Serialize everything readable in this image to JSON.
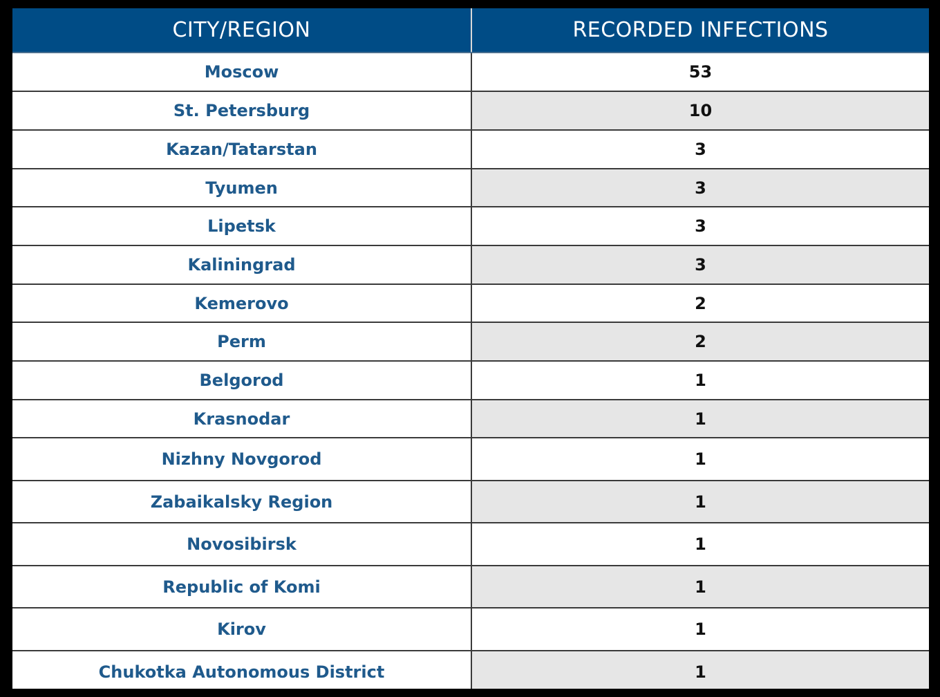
{
  "colors": {
    "header_bg": "#004c86",
    "header_text": "#ffffff",
    "city_text": "#1f5a8c",
    "number_text": "#111111",
    "stripe": "#e6e6e6"
  },
  "chart_data": {
    "type": "table",
    "columns": [
      "CITY/REGION",
      "RECORDED INFECTIONS"
    ],
    "rows": [
      {
        "city": "Moscow",
        "infections": "53"
      },
      {
        "city": "St. Petersburg",
        "infections": "10"
      },
      {
        "city": "Kazan/Tatarstan",
        "infections": "3"
      },
      {
        "city": "Tyumen",
        "infections": "3"
      },
      {
        "city": "Lipetsk",
        "infections": "3"
      },
      {
        "city": "Kaliningrad",
        "infections": "3"
      },
      {
        "city": "Kemerovo",
        "infections": "2"
      },
      {
        "city": "Perm",
        "infections": "2"
      },
      {
        "city": "Belgorod",
        "infections": "1"
      },
      {
        "city": "Krasnodar",
        "infections": "1"
      },
      {
        "city": "Nizhny Novgorod",
        "infections": "1"
      },
      {
        "city": "Zabaikalsky Region",
        "infections": "1"
      },
      {
        "city": "Novosibirsk",
        "infections": "1"
      },
      {
        "city": "Republic of Komi",
        "infections": "1"
      },
      {
        "city": "Kirov",
        "infections": "1"
      },
      {
        "city": "Chukotka Autonomous District",
        "infections": "1"
      }
    ]
  }
}
